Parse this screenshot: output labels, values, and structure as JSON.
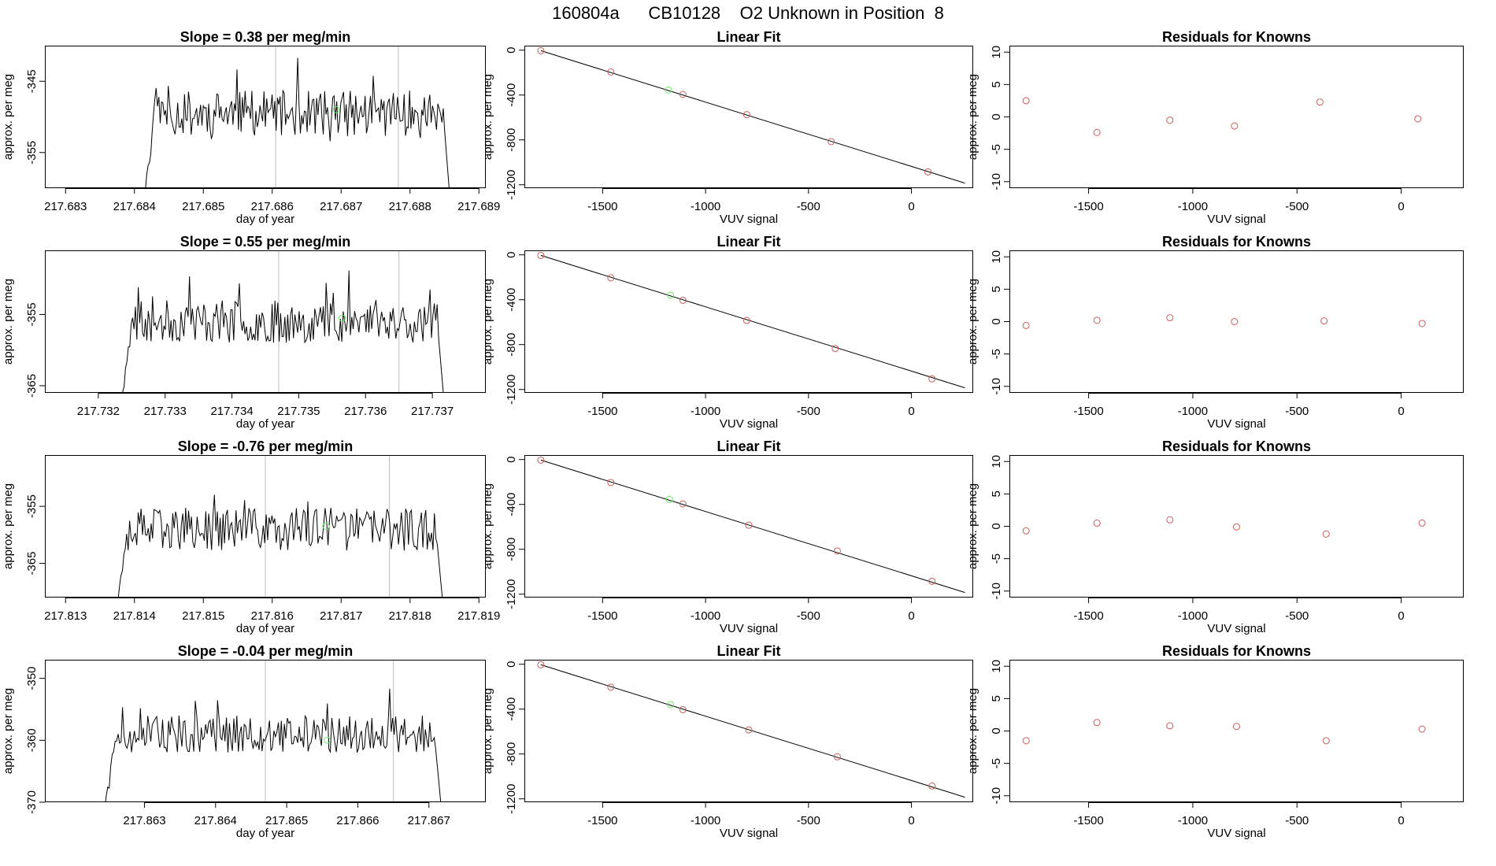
{
  "page_title": "160804a      CB10128    O2 Unknown in Position  8",
  "colors": {
    "line": "#000000",
    "known_point": "#cd5c5c",
    "unknown_point": "#66ee66",
    "vline": "#bebebe",
    "axis": "#000000"
  },
  "chart_data": [
    {
      "row": 0,
      "panel": "timeseries",
      "type": "line",
      "title": "Slope =  0.38  per meg/min",
      "xlabel": "day of year",
      "ylabel": "approx. per meg",
      "xlim": [
        217.6827,
        217.6891
      ],
      "ylim": [
        -360,
        -340
      ],
      "xticks": [
        217.683,
        217.684,
        217.685,
        217.686,
        217.687,
        217.688,
        217.689
      ],
      "xtick_labels": [
        "217.683",
        "217.684",
        "217.685",
        "217.686",
        "217.687",
        "217.688",
        "217.689"
      ],
      "yticks": [
        -345,
        -355
      ],
      "ytick_labels": [
        "-345",
        "-355"
      ],
      "vlines": [
        217.68605,
        217.68783
      ],
      "series_range": [
        217.6841,
        217.6886
      ],
      "series_base": -349.5,
      "series_amplitude": 3.2,
      "seed": 11,
      "unknown_point": {
        "x": 217.68693,
        "y": -349
      }
    },
    {
      "row": 0,
      "panel": "fit",
      "type": "scatter",
      "title": "Linear Fit",
      "xlabel": "VUV signal",
      "ylabel": "approx. per meg",
      "xlim": [
        -1880,
        300
      ],
      "ylim": [
        -1230,
        40
      ],
      "xticks": [
        -1500,
        -1000,
        -500,
        0
      ],
      "xtick_labels": [
        "-1500",
        "-1000",
        "-500",
        "0"
      ],
      "yticks": [
        0,
        -400,
        -800,
        -1200
      ],
      "ytick_labels": [
        "0",
        "-400",
        "-800",
        "-1200"
      ],
      "points_x": [
        -1800,
        -1460,
        -1110,
        -800,
        -390,
        80
      ],
      "points_y": [
        -5,
        -195,
        -395,
        -575,
        -815,
        -1085
      ],
      "unknown_point": {
        "x": -1180,
        "y": -355
      },
      "fit_line": [
        [
          -1800,
          -5
        ],
        [
          260,
          -1185
        ]
      ]
    },
    {
      "row": 0,
      "panel": "residuals",
      "type": "scatter",
      "title": "Residuals for Knowns",
      "xlabel": "VUV signal",
      "ylabel": "approx. per meg",
      "xlim": [
        -1880,
        300
      ],
      "ylim": [
        -11,
        11
      ],
      "xticks": [
        -1500,
        -1000,
        -500,
        0
      ],
      "xtick_labels": [
        "-1500",
        "-1000",
        "-500",
        "0"
      ],
      "yticks": [
        10,
        5,
        0,
        -5,
        -10
      ],
      "ytick_labels": [
        "10",
        "5",
        "0",
        "-5",
        "-10"
      ],
      "points_x": [
        -1800,
        -1460,
        -1110,
        -800,
        -390,
        80
      ],
      "points_y": [
        2.5,
        -2.4,
        -0.5,
        -1.4,
        2.3,
        -0.3
      ]
    },
    {
      "row": 1,
      "panel": "timeseries",
      "type": "line",
      "title": "Slope =  0.55  per meg/min",
      "xlabel": "day of year",
      "ylabel": "approx. per meg",
      "xlim": [
        217.7312,
        217.7378
      ],
      "ylim": [
        -366,
        -346
      ],
      "xticks": [
        217.732,
        217.733,
        217.734,
        217.735,
        217.736,
        217.737
      ],
      "xtick_labels": [
        "217.732",
        "217.733",
        "217.734",
        "217.735",
        "217.736",
        "217.737"
      ],
      "yticks": [
        -355,
        -365
      ],
      "ytick_labels": [
        "-355",
        "-365"
      ],
      "vlines": [
        217.7347,
        217.7365
      ],
      "series_range": [
        217.7323,
        217.7372
      ],
      "series_base": -356,
      "series_amplitude": 3.0,
      "seed": 23,
      "unknown_point": {
        "x": 217.73565,
        "y": -355.5
      }
    },
    {
      "row": 1,
      "panel": "fit",
      "type": "scatter",
      "title": "Linear Fit",
      "xlabel": "VUV signal",
      "ylabel": "approx. per meg",
      "xlim": [
        -1880,
        300
      ],
      "ylim": [
        -1230,
        40
      ],
      "xticks": [
        -1500,
        -1000,
        -500,
        0
      ],
      "xtick_labels": [
        "-1500",
        "-1000",
        "-500",
        "0"
      ],
      "yticks": [
        0,
        -400,
        -800,
        -1200
      ],
      "ytick_labels": [
        "0",
        "-400",
        "-800",
        "-1200"
      ],
      "points_x": [
        -1800,
        -1460,
        -1110,
        -800,
        -370,
        100
      ],
      "points_y": [
        -5,
        -205,
        -405,
        -585,
        -835,
        -1105
      ],
      "unknown_point": {
        "x": -1170,
        "y": -360
      },
      "fit_line": [
        [
          -1800,
          -5
        ],
        [
          260,
          -1185
        ]
      ]
    },
    {
      "row": 1,
      "panel": "residuals",
      "type": "scatter",
      "title": "Residuals for Knowns",
      "xlabel": "VUV signal",
      "ylabel": "approx. per meg",
      "xlim": [
        -1880,
        300
      ],
      "ylim": [
        -11,
        11
      ],
      "xticks": [
        -1500,
        -1000,
        -500,
        0
      ],
      "xtick_labels": [
        "-1500",
        "-1000",
        "-500",
        "0"
      ],
      "yticks": [
        10,
        5,
        0,
        -5,
        -10
      ],
      "ytick_labels": [
        "10",
        "5",
        "0",
        "-5",
        "-10"
      ],
      "points_x": [
        -1800,
        -1460,
        -1110,
        -800,
        -370,
        100
      ],
      "points_y": [
        -0.6,
        0.2,
        0.6,
        0.0,
        0.1,
        -0.3
      ]
    },
    {
      "row": 2,
      "panel": "timeseries",
      "type": "line",
      "title": "Slope =  -0.76  per meg/min",
      "xlabel": "day of year",
      "ylabel": "approx. per meg",
      "xlim": [
        217.8127,
        217.8191
      ],
      "ylim": [
        -371,
        -346
      ],
      "xticks": [
        217.813,
        217.814,
        217.815,
        217.816,
        217.817,
        217.818,
        217.819
      ],
      "xtick_labels": [
        "217.813",
        "217.814",
        "217.815",
        "217.816",
        "217.817",
        "217.818",
        "217.819"
      ],
      "yticks": [
        -355,
        -365
      ],
      "ytick_labels": [
        "-355",
        "-365"
      ],
      "vlines": [
        217.8159,
        217.8177
      ],
      "series_range": [
        217.8137,
        217.8185
      ],
      "series_base": -359,
      "series_amplitude": 3.8,
      "seed": 37,
      "unknown_point": {
        "x": 217.81678,
        "y": -358.5
      }
    },
    {
      "row": 2,
      "panel": "fit",
      "type": "scatter",
      "title": "Linear Fit",
      "xlabel": "VUV signal",
      "ylabel": "approx. per meg",
      "xlim": [
        -1880,
        300
      ],
      "ylim": [
        -1230,
        40
      ],
      "xticks": [
        -1500,
        -1000,
        -500,
        0
      ],
      "xtick_labels": [
        "-1500",
        "-1000",
        "-500",
        "0"
      ],
      "yticks": [
        0,
        -400,
        -800,
        -1200
      ],
      "ytick_labels": [
        "0",
        "-400",
        "-800",
        "-1200"
      ],
      "points_x": [
        -1800,
        -1460,
        -1110,
        -790,
        -360,
        100
      ],
      "points_y": [
        -5,
        -205,
        -395,
        -585,
        -815,
        -1085
      ],
      "unknown_point": {
        "x": -1175,
        "y": -355
      },
      "fit_line": [
        [
          -1800,
          -5
        ],
        [
          260,
          -1185
        ]
      ]
    },
    {
      "row": 2,
      "panel": "residuals",
      "type": "scatter",
      "title": "Residuals for Knowns",
      "xlabel": "VUV signal",
      "ylabel": "approx. per meg",
      "xlim": [
        -1880,
        300
      ],
      "ylim": [
        -11,
        11
      ],
      "xticks": [
        -1500,
        -1000,
        -500,
        0
      ],
      "xtick_labels": [
        "-1500",
        "-1000",
        "-500",
        "0"
      ],
      "yticks": [
        10,
        5,
        0,
        -5,
        -10
      ],
      "ytick_labels": [
        "10",
        "5",
        "0",
        "-5",
        "-10"
      ],
      "points_x": [
        -1800,
        -1460,
        -1110,
        -790,
        -360,
        100
      ],
      "points_y": [
        -0.7,
        0.5,
        1.0,
        -0.1,
        -1.2,
        0.5
      ]
    },
    {
      "row": 3,
      "panel": "timeseries",
      "type": "line",
      "title": "Slope =  -0.04  per meg/min",
      "xlabel": "day of year",
      "ylabel": "approx. per meg",
      "xlim": [
        217.8616,
        217.8678
      ],
      "ylim": [
        -370,
        -347
      ],
      "xticks": [
        217.863,
        217.864,
        217.865,
        217.866,
        217.867
      ],
      "xtick_labels": [
        "217.863",
        "217.864",
        "217.865",
        "217.866",
        "217.867"
      ],
      "yticks": [
        -350,
        -360,
        -370
      ],
      "ytick_labels": [
        "-350",
        "-360",
        "-370"
      ],
      "vlines": [
        217.8647,
        217.8665
      ],
      "series_range": [
        217.8624,
        217.8672
      ],
      "series_base": -359,
      "series_amplitude": 3.0,
      "seed": 51,
      "extra_points_start": "217.8622",
      "unknown_point": {
        "x": 217.86557,
        "y": -360
      }
    },
    {
      "row": 3,
      "panel": "fit",
      "type": "scatter",
      "title": "Linear Fit",
      "xlabel": "VUV signal",
      "ylabel": "approx. per meg",
      "xlim": [
        -1880,
        300
      ],
      "ylim": [
        -1230,
        40
      ],
      "xticks": [
        -1500,
        -1000,
        -500,
        0
      ],
      "xtick_labels": [
        "-1500",
        "-1000",
        "-500",
        "0"
      ],
      "yticks": [
        0,
        -400,
        -800,
        -1200
      ],
      "ytick_labels": [
        "0",
        "-400",
        "-800",
        "-1200"
      ],
      "points_x": [
        -1800,
        -1460,
        -1110,
        -790,
        -360,
        100
      ],
      "points_y": [
        -5,
        -205,
        -405,
        -585,
        -825,
        -1085
      ],
      "unknown_point": {
        "x": -1170,
        "y": -360
      },
      "fit_line": [
        [
          -1800,
          -5
        ],
        [
          260,
          -1185
        ]
      ]
    },
    {
      "row": 3,
      "panel": "residuals",
      "type": "scatter",
      "title": "Residuals for Knowns",
      "xlabel": "VUV signal",
      "ylabel": "approx. per meg",
      "xlim": [
        -1880,
        300
      ],
      "ylim": [
        -11,
        11
      ],
      "xticks": [
        -1500,
        -1000,
        -500,
        0
      ],
      "xtick_labels": [
        "-1500",
        "-1000",
        "-500",
        "0"
      ],
      "yticks": [
        10,
        5,
        0,
        -5,
        -10
      ],
      "ytick_labels": [
        "10",
        "5",
        "0",
        "-5",
        "-10"
      ],
      "points_x": [
        -1800,
        -1460,
        -1110,
        -790,
        -360,
        100
      ],
      "points_y": [
        -1.5,
        1.3,
        0.8,
        0.7,
        -1.5,
        0.3
      ]
    }
  ]
}
